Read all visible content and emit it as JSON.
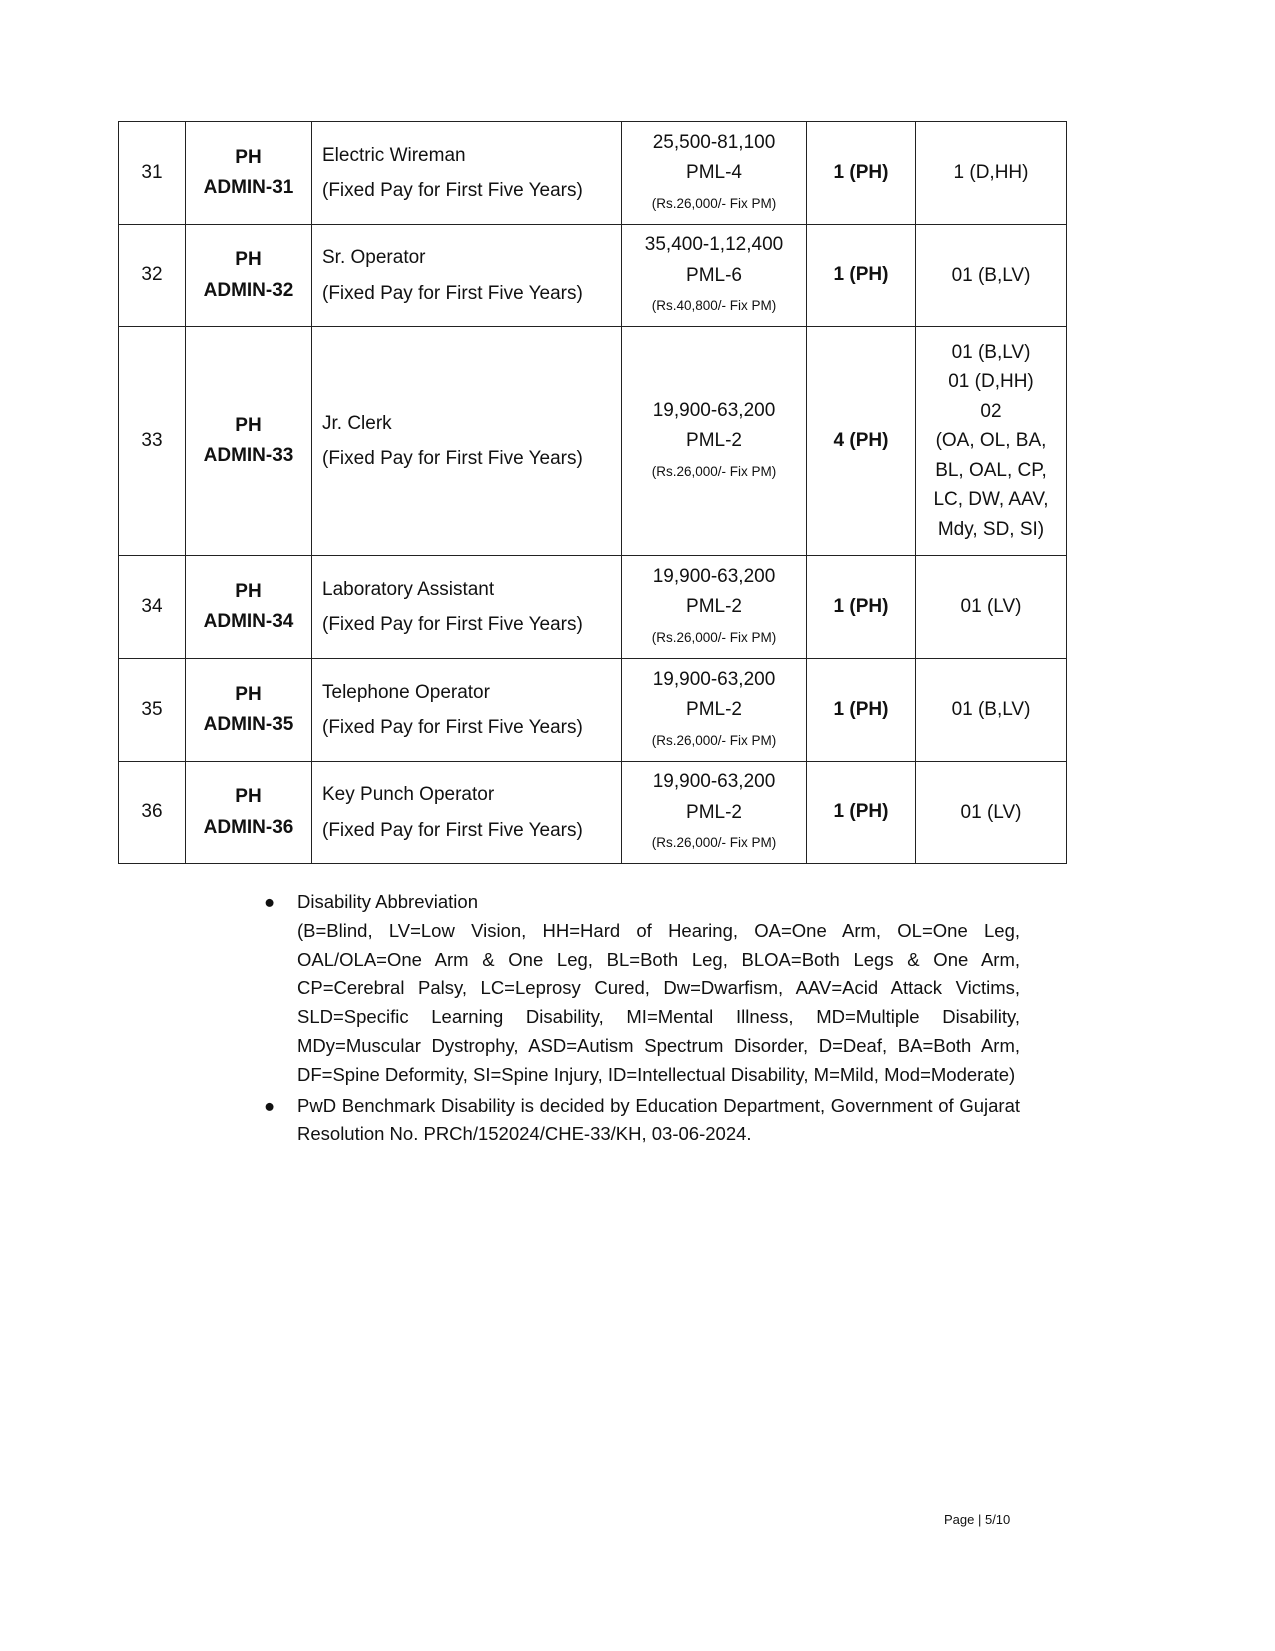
{
  "table": {
    "rows": [
      {
        "sr": "31",
        "code_a": "PH",
        "code_b": "ADMIN-31",
        "post": "Electric Wireman",
        "post_note": "(Fixed Pay for First Five Years)",
        "pay_range": "25,500-81,100",
        "pay_level": "PML-4",
        "fix_pay": "(Rs.26,000/- Fix PM)",
        "vacancy": "1 (PH)",
        "disability": [
          "1 (D,HH)"
        ]
      },
      {
        "sr": "32",
        "code_a": "PH",
        "code_b": "ADMIN-32",
        "post": "Sr. Operator",
        "post_note": "(Fixed Pay for First Five Years)",
        "pay_range": "35,400-1,12,400",
        "pay_level": "PML-6",
        "fix_pay": "(Rs.40,800/- Fix PM)",
        "vacancy": "1 (PH)",
        "disability": [
          "01 (B,LV)"
        ]
      },
      {
        "sr": "33",
        "code_a": "PH",
        "code_b": "ADMIN-33",
        "post": "Jr. Clerk",
        "post_note": "(Fixed Pay for First Five Years)",
        "pay_range": "19,900-63,200",
        "pay_level": "PML-2",
        "fix_pay": "(Rs.26,000/- Fix PM)",
        "vacancy": "4 (PH)",
        "disability": [
          "01 (B,LV)",
          "01 (D,HH)",
          "02",
          "(OA, OL, BA,",
          "BL, OAL, CP,",
          "LC, DW, AAV,",
          "Mdy, SD, SI)"
        ]
      },
      {
        "sr": "34",
        "code_a": "PH",
        "code_b": "ADMIN-34",
        "post": "Laboratory Assistant",
        "post_note": "(Fixed Pay for First Five Years)",
        "pay_range": "19,900-63,200",
        "pay_level": "PML-2",
        "fix_pay": "(Rs.26,000/- Fix PM)",
        "vacancy": "1 (PH)",
        "disability": [
          "01  (LV)"
        ]
      },
      {
        "sr": "35",
        "code_a": "PH",
        "code_b": "ADMIN-35",
        "post": "Telephone Operator",
        "post_note": "(Fixed Pay for First Five Years)",
        "pay_range": "19,900-63,200",
        "pay_level": "PML-2",
        "fix_pay": "(Rs.26,000/- Fix PM)",
        "vacancy": "1 (PH)",
        "disability": [
          "01 (B,LV)"
        ]
      },
      {
        "sr": "36",
        "code_a": "PH",
        "code_b": "ADMIN-36",
        "post": "Key Punch Operator",
        "post_note": "(Fixed Pay for First Five Years)",
        "pay_range": "19,900-63,200",
        "pay_level": "PML-2",
        "fix_pay": "(Rs.26,000/- Fix PM)",
        "vacancy": "1 (PH)",
        "disability": [
          "01  (LV)"
        ]
      }
    ]
  },
  "notes": [
    {
      "heading": "Disability Abbreviation",
      "text": "(B=Blind, LV=Low Vision, HH=Hard of Hearing, OA=One Arm, OL=One Leg, OAL/OLA=One Arm & One Leg, BL=Both Leg, BLOA=Both Legs & One Arm, CP=Cerebral Palsy, LC=Leprosy Cured, Dw=Dwarfism, AAV=Acid Attack Victims, SLD=Specific Learning Disability, MI=Mental Illness, MD=Multiple Disability, MDy=Muscular Dystrophy, ASD=Autism Spectrum Disorder, D=Deaf, BA=Both Arm, DF=Spine Deformity, SI=Spine Injury, ID=Intellectual Disability, M=Mild, Mod=Moderate)"
    },
    {
      "heading": "",
      "text": "PwD Benchmark Disability is decided by Education Department, Government of Gujarat Resolution No. PRCh/152024/CHE-33/KH, 03-06-2024."
    }
  ],
  "footer": {
    "page": "Page | 5/10"
  }
}
